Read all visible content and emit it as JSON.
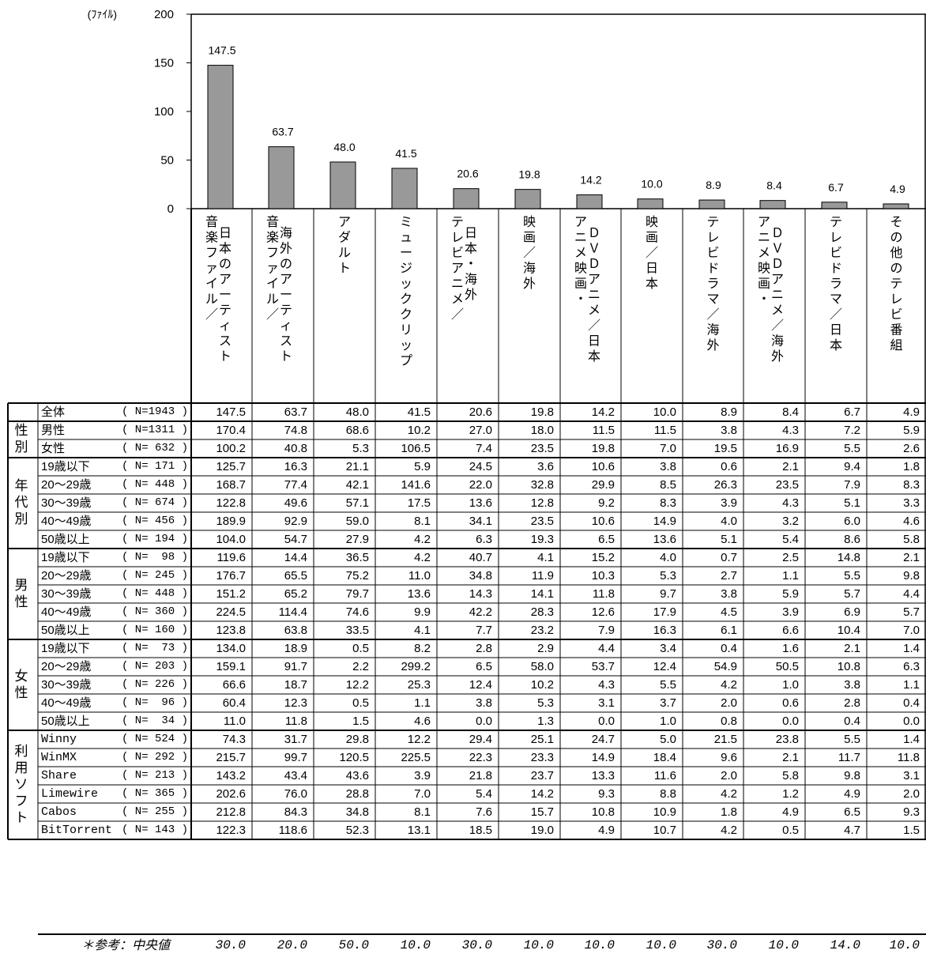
{
  "chart_data": {
    "type": "bar",
    "unit_label": "(ﾌｧｲﾙ)",
    "ylim": [
      0,
      200
    ],
    "yticks": [
      0,
      50,
      100,
      150,
      200
    ],
    "categories": [
      "音楽ファイル／日本のアーティスト",
      "音楽ファイル／海外のアーティスト",
      "アダルト",
      "ミュージッククリップ",
      "テレビアニメ／日本・海外",
      "映画／海外",
      "アニメ映画・ＤＶＤアニメ／日本",
      "映画／日本",
      "テレビドラマ／海外",
      "アニメ映画・ＤＶＤアニメ／海外",
      "テレビドラマ／日本",
      "その他のテレビ番組"
    ],
    "values": [
      147.5,
      63.7,
      48.0,
      41.5,
      20.6,
      19.8,
      14.2,
      10.0,
      8.9,
      8.4,
      6.7,
      4.9
    ],
    "value_labels": [
      "147.5",
      "63.7",
      "48.0",
      "41.5",
      "20.6",
      "19.8",
      "14.2",
      "10.0",
      "8.9",
      "8.4",
      "6.7",
      "4.9"
    ],
    "bar_color": "#999999",
    "category_label_columns": [
      [
        [
          "音楽",
          "ファイル",
          "／"
        ],
        [
          "日本のアーティスト"
        ]
      ],
      [
        [
          "音楽",
          "ファイル",
          "／"
        ],
        [
          "海外のアーティスト"
        ]
      ],
      [
        [
          "アダルト"
        ]
      ],
      [
        [
          "ミュージッククリップ"
        ]
      ],
      [
        [
          "テレビアニメ",
          "／"
        ],
        [
          "日本・海外"
        ]
      ],
      [
        [
          "映画",
          "／",
          "海外"
        ]
      ],
      [
        [
          "アニメ映画・"
        ],
        [
          "ＤＶＤアニメ",
          "／",
          "日本"
        ]
      ],
      [
        [
          "映画",
          "／",
          "日本"
        ]
      ],
      [
        [
          "テレビドラマ",
          "／",
          "海外"
        ]
      ],
      [
        [
          "アニメ映画・"
        ],
        [
          "ＤＶＤアニメ",
          "／",
          "海外"
        ]
      ],
      [
        [
          "テレビドラマ",
          "／",
          "日本"
        ]
      ],
      [
        [
          "その他のテレビ番組"
        ]
      ]
    ]
  },
  "table": {
    "groups": [
      {
        "label": "",
        "rows": [
          {
            "label": "全体",
            "n": "( N=1943 )",
            "values": [
              "147.5",
              "63.7",
              "48.0",
              "41.5",
              "20.6",
              "19.8",
              "14.2",
              "10.0",
              "8.9",
              "8.4",
              "6.7",
              "4.9"
            ]
          }
        ]
      },
      {
        "label": "性別",
        "rows": [
          {
            "label": "男性",
            "n": "( N=1311 )",
            "values": [
              "170.4",
              "74.8",
              "68.6",
              "10.2",
              "27.0",
              "18.0",
              "11.5",
              "11.5",
              "3.8",
              "4.3",
              "7.2",
              "5.9"
            ]
          },
          {
            "label": "女性",
            "n": "( N= 632 )",
            "values": [
              "100.2",
              "40.8",
              "5.3",
              "106.5",
              "7.4",
              "23.5",
              "19.8",
              "7.0",
              "19.5",
              "16.9",
              "5.5",
              "2.6"
            ]
          }
        ]
      },
      {
        "label": "年代別",
        "rows": [
          {
            "label": "19歳以下",
            "n": "( N= 171 )",
            "values": [
              "125.7",
              "16.3",
              "21.1",
              "5.9",
              "24.5",
              "3.6",
              "10.6",
              "3.8",
              "0.6",
              "2.1",
              "9.4",
              "1.8"
            ]
          },
          {
            "label": "20～29歳",
            "n": "( N= 448 )",
            "values": [
              "168.7",
              "77.4",
              "42.1",
              "141.6",
              "22.0",
              "32.8",
              "29.9",
              "8.5",
              "26.3",
              "23.5",
              "7.9",
              "8.3"
            ]
          },
          {
            "label": "30～39歳",
            "n": "( N= 674 )",
            "values": [
              "122.8",
              "49.6",
              "57.1",
              "17.5",
              "13.6",
              "12.8",
              "9.2",
              "8.3",
              "3.9",
              "4.3",
              "5.1",
              "3.3"
            ]
          },
          {
            "label": "40～49歳",
            "n": "( N= 456 )",
            "values": [
              "189.9",
              "92.9",
              "59.0",
              "8.1",
              "34.1",
              "23.5",
              "10.6",
              "14.9",
              "4.0",
              "3.2",
              "6.0",
              "4.6"
            ]
          },
          {
            "label": "50歳以上",
            "n": "( N= 194 )",
            "values": [
              "104.0",
              "54.7",
              "27.9",
              "4.2",
              "6.3",
              "19.3",
              "6.5",
              "13.6",
              "5.1",
              "5.4",
              "8.6",
              "5.8"
            ]
          }
        ]
      },
      {
        "label": "男性",
        "rows": [
          {
            "label": "19歳以下",
            "n": "( N=  98 )",
            "values": [
              "119.6",
              "14.4",
              "36.5",
              "4.2",
              "40.7",
              "4.1",
              "15.2",
              "4.0",
              "0.7",
              "2.5",
              "14.8",
              "2.1"
            ]
          },
          {
            "label": "20～29歳",
            "n": "( N= 245 )",
            "values": [
              "176.7",
              "65.5",
              "75.2",
              "11.0",
              "34.8",
              "11.9",
              "10.3",
              "5.3",
              "2.7",
              "1.1",
              "5.5",
              "9.8"
            ]
          },
          {
            "label": "30～39歳",
            "n": "( N= 448 )",
            "values": [
              "151.2",
              "65.2",
              "79.7",
              "13.6",
              "14.3",
              "14.1",
              "11.8",
              "9.7",
              "3.8",
              "5.9",
              "5.7",
              "4.4"
            ]
          },
          {
            "label": "40～49歳",
            "n": "( N= 360 )",
            "values": [
              "224.5",
              "114.4",
              "74.6",
              "9.9",
              "42.2",
              "28.3",
              "12.6",
              "17.9",
              "4.5",
              "3.9",
              "6.9",
              "5.7"
            ]
          },
          {
            "label": "50歳以上",
            "n": "( N= 160 )",
            "values": [
              "123.8",
              "63.8",
              "33.5",
              "4.1",
              "7.7",
              "23.2",
              "7.9",
              "16.3",
              "6.1",
              "6.6",
              "10.4",
              "7.0"
            ]
          }
        ]
      },
      {
        "label": "女性",
        "rows": [
          {
            "label": "19歳以下",
            "n": "( N=  73 )",
            "values": [
              "134.0",
              "18.9",
              "0.5",
              "8.2",
              "2.8",
              "2.9",
              "4.4",
              "3.4",
              "0.4",
              "1.6",
              "2.1",
              "1.4"
            ]
          },
          {
            "label": "20～29歳",
            "n": "( N= 203 )",
            "values": [
              "159.1",
              "91.7",
              "2.2",
              "299.2",
              "6.5",
              "58.0",
              "53.7",
              "12.4",
              "54.9",
              "50.5",
              "10.8",
              "6.3"
            ]
          },
          {
            "label": "30～39歳",
            "n": "( N= 226 )",
            "values": [
              "66.6",
              "18.7",
              "12.2",
              "25.3",
              "12.4",
              "10.2",
              "4.3",
              "5.5",
              "4.2",
              "1.0",
              "3.8",
              "1.1"
            ]
          },
          {
            "label": "40～49歳",
            "n": "( N=  96 )",
            "values": [
              "60.4",
              "12.3",
              "0.5",
              "1.1",
              "3.8",
              "5.3",
              "3.1",
              "3.7",
              "2.0",
              "0.6",
              "2.8",
              "0.4"
            ]
          },
          {
            "label": "50歳以上",
            "n": "( N=  34 )",
            "values": [
              "11.0",
              "11.8",
              "1.5",
              "4.6",
              "0.0",
              "1.3",
              "0.0",
              "1.0",
              "0.8",
              "0.0",
              "0.4",
              "0.0"
            ]
          }
        ]
      },
      {
        "label": "利用ソフト",
        "rows": [
          {
            "label": "Winny",
            "n": "( N= 524 )",
            "values": [
              "74.3",
              "31.7",
              "29.8",
              "12.2",
              "29.4",
              "25.1",
              "24.7",
              "5.0",
              "21.5",
              "23.8",
              "5.5",
              "1.4"
            ]
          },
          {
            "label": "WinMX",
            "n": "( N= 292 )",
            "values": [
              "215.7",
              "99.7",
              "120.5",
              "225.5",
              "22.3",
              "23.3",
              "14.9",
              "18.4",
              "9.6",
              "2.1",
              "11.7",
              "11.8"
            ]
          },
          {
            "label": "Share",
            "n": "( N= 213 )",
            "values": [
              "143.2",
              "43.4",
              "43.6",
              "3.9",
              "21.8",
              "23.7",
              "13.3",
              "11.6",
              "2.0",
              "5.8",
              "9.8",
              "3.1"
            ]
          },
          {
            "label": "Limewire",
            "n": "( N= 365 )",
            "values": [
              "202.6",
              "76.0",
              "28.8",
              "7.0",
              "5.4",
              "14.2",
              "9.3",
              "8.8",
              "4.2",
              "1.2",
              "4.9",
              "2.0"
            ]
          },
          {
            "label": "Cabos",
            "n": "( N= 255 )",
            "values": [
              "212.8",
              "84.3",
              "34.8",
              "8.1",
              "7.6",
              "15.7",
              "10.8",
              "10.9",
              "1.8",
              "4.9",
              "6.5",
              "9.3"
            ]
          },
          {
            "label": "BitTorrent",
            "n": "( N= 143 )",
            "values": [
              "122.3",
              "118.6",
              "52.3",
              "13.1",
              "18.5",
              "19.0",
              "4.9",
              "10.7",
              "4.2",
              "0.5",
              "4.7",
              "1.5"
            ]
          }
        ]
      }
    ],
    "reference": {
      "label": "＊参考：中央値",
      "values": [
        "30.0",
        "20.0",
        "50.0",
        "10.0",
        "30.0",
        "10.0",
        "10.0",
        "10.0",
        "30.0",
        "10.0",
        "14.0",
        "10.0"
      ]
    }
  }
}
